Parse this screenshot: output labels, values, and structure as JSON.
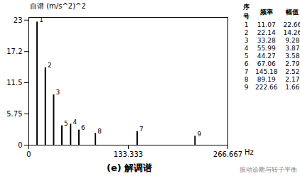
{
  "chart_data": {
    "type": "bar",
    "title": "自谱 (m/s^2)^2",
    "x_label": "Hz",
    "caption": "(e) 解调谱",
    "ids": [
      1,
      2,
      3,
      4,
      5,
      6,
      7,
      8,
      9
    ],
    "x": [
      11.07,
      22.14,
      33.28,
      55.99,
      44.27,
      67.06,
      145.18,
      89.19,
      222.66
    ],
    "values": [
      22.66,
      14.26,
      9.28,
      3.87,
      3.58,
      2.79,
      2.52,
      2.17,
      1.66
    ],
    "table_columns": [
      "序号",
      "频率",
      "幅值"
    ],
    "color": "#000000",
    "xlim": [
      0,
      266.667
    ],
    "xticks": [
      0,
      133.333,
      266.667
    ],
    "ylim": [
      0,
      23.5
    ],
    "yticks": [
      0,
      5.75,
      11.5,
      17.2,
      23
    ],
    "grid": false
  },
  "watermark": "振动诊断与转子平衡"
}
